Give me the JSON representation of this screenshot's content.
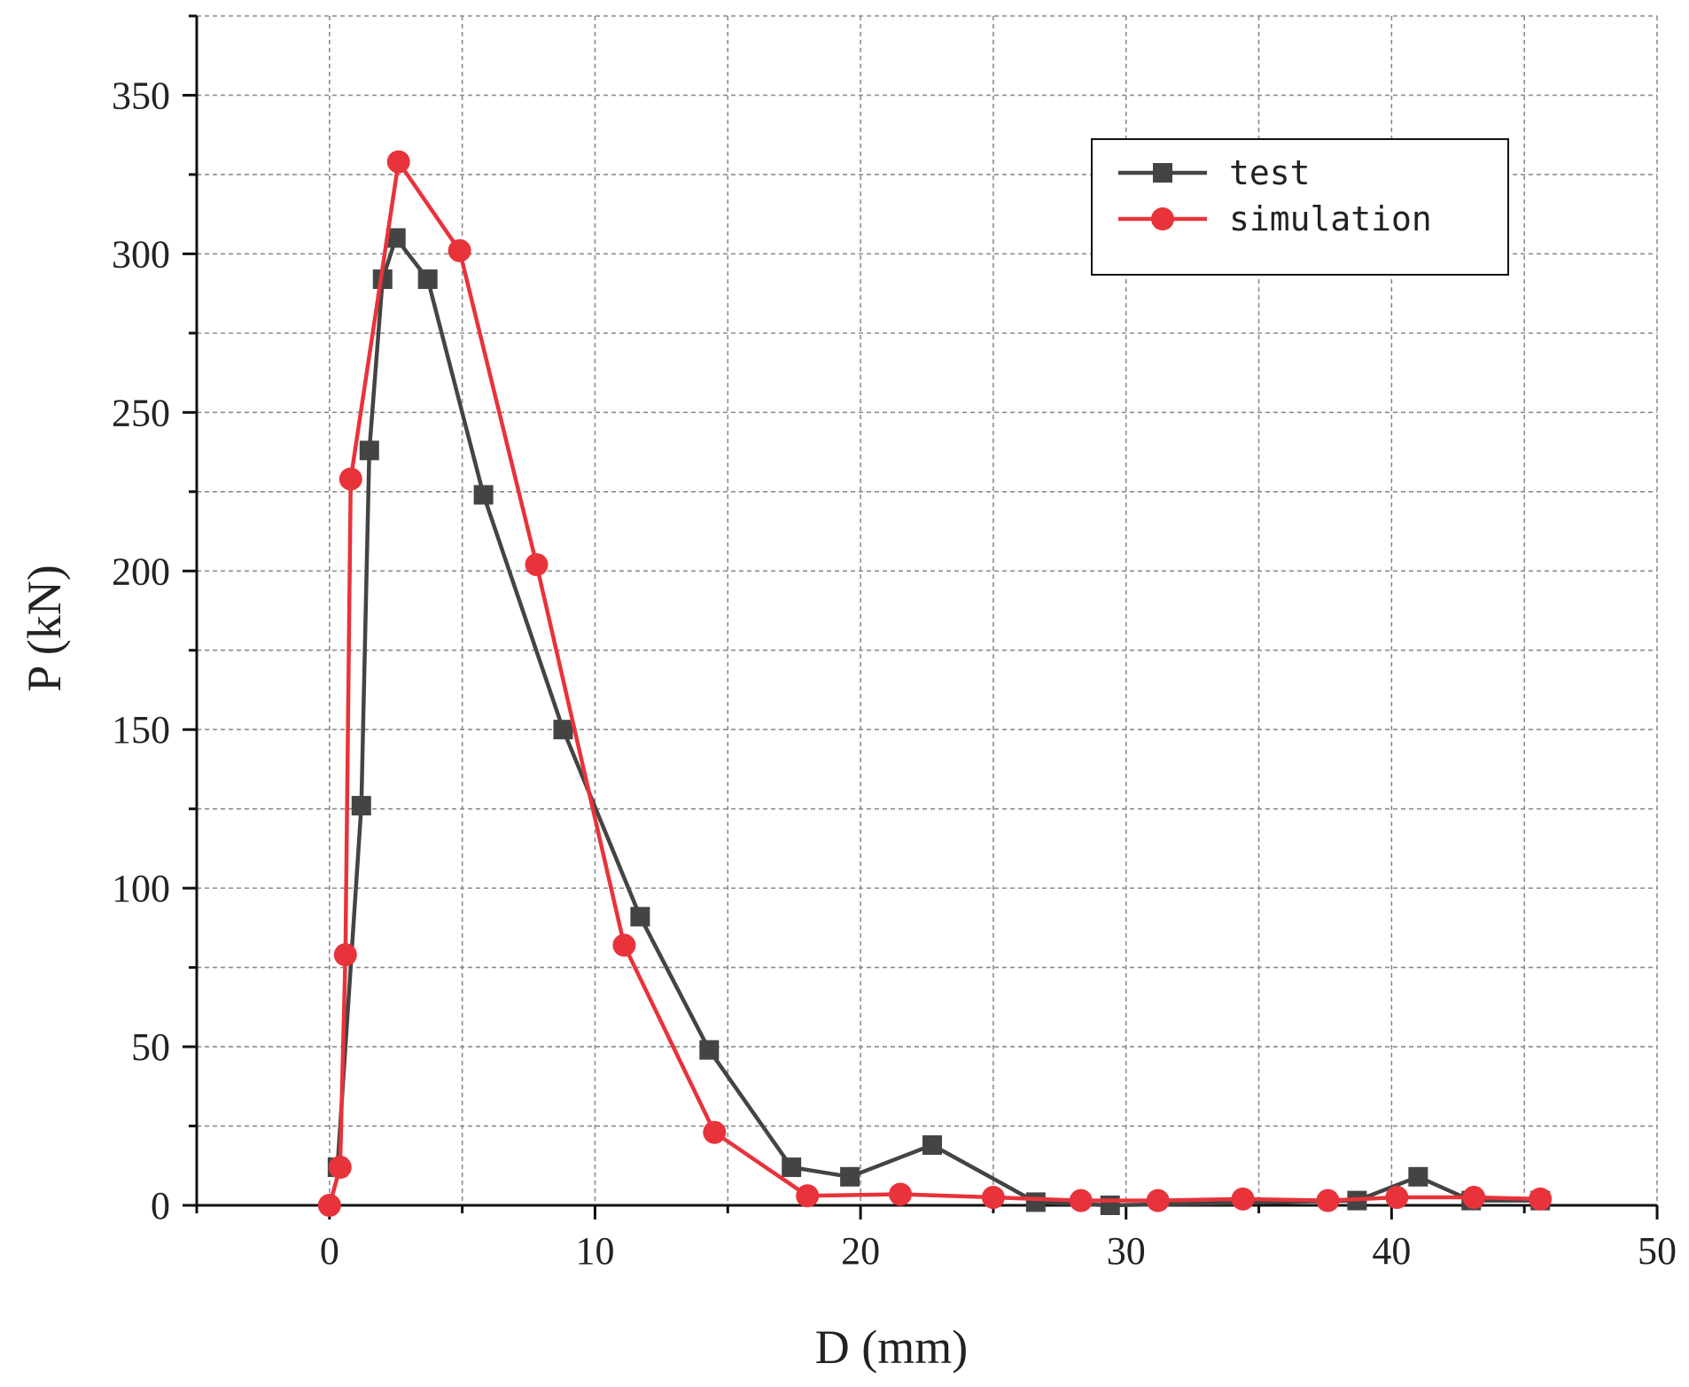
{
  "chart_data": {
    "type": "line",
    "xlabel": "D (mm)",
    "ylabel": "P (kN)",
    "xlim": [
      -5,
      50
    ],
    "ylim": [
      0,
      375
    ],
    "xticks": [
      "0",
      "10",
      "20",
      "30",
      "40",
      "50"
    ],
    "yticks": [
      "0",
      "50",
      "100",
      "150",
      "200",
      "250",
      "300",
      "350"
    ],
    "grid": true,
    "legend_position": "top-right",
    "series": [
      {
        "name": "test",
        "color": "#444444",
        "marker": "square",
        "points": [
          [
            0.3,
            12
          ],
          [
            1.2,
            126
          ],
          [
            1.5,
            238
          ],
          [
            2.0,
            292
          ],
          [
            2.5,
            305
          ],
          [
            3.7,
            292
          ],
          [
            5.8,
            224
          ],
          [
            8.8,
            150
          ],
          [
            11.7,
            91
          ],
          [
            14.3,
            49
          ],
          [
            17.4,
            12
          ],
          [
            19.6,
            9
          ],
          [
            22.7,
            19
          ],
          [
            26.6,
            1
          ],
          [
            29.4,
            0
          ],
          [
            38.7,
            1.5
          ],
          [
            41.0,
            9
          ],
          [
            43.0,
            1.5
          ],
          [
            45.6,
            1.5
          ]
        ]
      },
      {
        "name": "simulation",
        "color": "#e8333b",
        "marker": "circle",
        "points": [
          [
            0.0,
            0
          ],
          [
            0.4,
            12
          ],
          [
            0.6,
            79
          ],
          [
            0.8,
            229
          ],
          [
            2.6,
            329
          ],
          [
            4.9,
            301
          ],
          [
            7.8,
            202
          ],
          [
            11.1,
            82
          ],
          [
            14.5,
            23
          ],
          [
            18.0,
            3
          ],
          [
            21.5,
            3.5
          ],
          [
            25.0,
            2.5
          ],
          [
            28.3,
            1.5
          ],
          [
            31.2,
            1.5
          ],
          [
            34.4,
            2
          ],
          [
            37.6,
            1.5
          ],
          [
            40.2,
            2.5
          ],
          [
            43.1,
            2.5
          ],
          [
            45.6,
            2
          ]
        ]
      }
    ]
  }
}
